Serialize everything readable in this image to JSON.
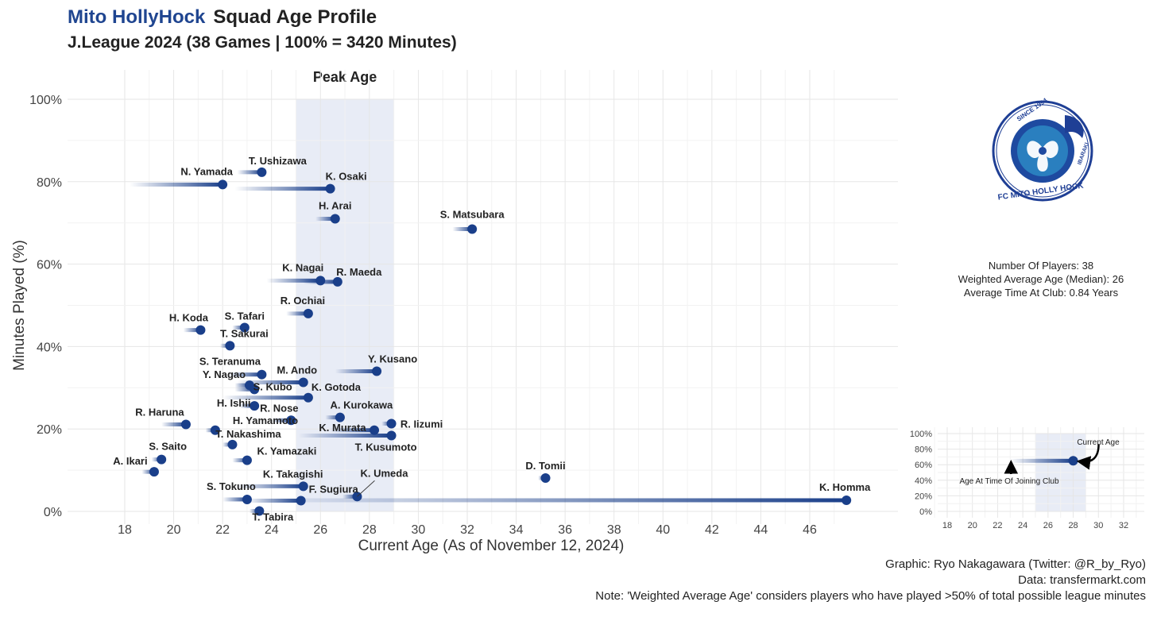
{
  "header": {
    "club": "Mito HollyHock",
    "title_rest": "Squad Age Profile",
    "subtitle": "J.League 2024 (38 Games | 100% = 3420 Minutes)"
  },
  "logo": {
    "since": "SINCE 1994",
    "name": "FC MITO HOLLY HOCK",
    "region": "IBARAKI"
  },
  "stats": {
    "players": "Number Of Players: 38",
    "weighted_age": "Weighted Average Age (Median): 26",
    "time_at_club": "Average Time At Club: 0.84 Years"
  },
  "footer": {
    "graphic": "Graphic: Ryo Nakagawara (Twitter: @R_by_Ryo)",
    "data": "Data: transfermarkt.com",
    "note": "Note: 'Weighted Average Age' considers players who have played >50% of total possible league minutes"
  },
  "colors": {
    "accent": "#1f4590",
    "point": "#1a3f8a",
    "peak_band": "#e8ecf6",
    "grid": "#e6e6e6",
    "label": "#222222"
  },
  "chart_data": {
    "type": "scatter",
    "title": "Peak Age",
    "xlabel": "Current Age (As of November 12, 2024)",
    "ylabel": "Minutes Played (%)",
    "xlim": [
      16,
      50
    ],
    "ylim": [
      0,
      100
    ],
    "xticks": [
      18,
      20,
      22,
      24,
      26,
      28,
      30,
      32,
      34,
      36,
      38,
      40,
      42,
      44,
      46
    ],
    "yticks": [
      0,
      20,
      40,
      60,
      80,
      100
    ],
    "peak_band": [
      25,
      29
    ],
    "points": [
      {
        "name": "T. Ushizawa",
        "age": 23.6,
        "joined": 22.6,
        "minutes": 82.3
      },
      {
        "name": "N. Yamada",
        "age": 22.0,
        "joined": 18.2,
        "minutes": 79.3
      },
      {
        "name": "K. Osaki",
        "age": 26.4,
        "joined": 22.5,
        "minutes": 78.3
      },
      {
        "name": "H. Arai",
        "age": 26.6,
        "joined": 25.8,
        "minutes": 71.0
      },
      {
        "name": "S. Matsubara",
        "age": 32.2,
        "joined": 31.4,
        "minutes": 68.5
      },
      {
        "name": "K. Nagai",
        "age": 26.0,
        "joined": 23.8,
        "minutes": 56.0
      },
      {
        "name": "R. Maeda",
        "age": 26.7,
        "joined": 25.3,
        "minutes": 55.7
      },
      {
        "name": "R. Ochiai",
        "age": 25.5,
        "joined": 24.6,
        "minutes": 48.0
      },
      {
        "name": "S. Tafari",
        "age": 22.9,
        "joined": 22.4,
        "minutes": 44.6
      },
      {
        "name": "H. Koda",
        "age": 21.1,
        "joined": 20.4,
        "minutes": 44.0
      },
      {
        "name": "T. Sakurai",
        "age": 22.3,
        "joined": 21.9,
        "minutes": 40.2
      },
      {
        "name": "S. Teranuma",
        "age": 23.6,
        "joined": 22.2,
        "minutes": 33.2
      },
      {
        "name": "Y. Kusano",
        "age": 28.3,
        "joined": 26.6,
        "minutes": 34.0
      },
      {
        "name": "M. Ando",
        "age": 25.3,
        "joined": 22.6,
        "minutes": 31.3
      },
      {
        "name": "Y. Nagao",
        "age": 23.1,
        "joined": 22.5,
        "minutes": 30.6
      },
      {
        "name": "S. Kubo",
        "age": 23.3,
        "joined": 22.5,
        "minutes": 29.6
      },
      {
        "name": "K. Gotoda",
        "age": 25.5,
        "joined": 22.0,
        "minutes": 27.6
      },
      {
        "name": "H. Ishii",
        "age": 23.3,
        "joined": 22.7,
        "minutes": 25.6
      },
      {
        "name": "R. Nose",
        "age": 24.8,
        "joined": 24.0,
        "minutes": 22.1
      },
      {
        "name": "A. Kurokawa",
        "age": 26.8,
        "joined": 26.2,
        "minutes": 22.8
      },
      {
        "name": "R. Iizumi",
        "age": 28.9,
        "joined": 28.5,
        "minutes": 21.3
      },
      {
        "name": "R. Haruna",
        "age": 20.5,
        "joined": 19.5,
        "minutes": 21.1
      },
      {
        "name": "H. Yamamoto",
        "age": 21.7,
        "joined": 21.3,
        "minutes": 19.7
      },
      {
        "name": "K. Murata",
        "age": 28.2,
        "joined": 26.4,
        "minutes": 19.7
      },
      {
        "name": "T. Kusumoto",
        "age": 28.9,
        "joined": 25.1,
        "minutes": 18.4
      },
      {
        "name": "T. Nakashima",
        "age": 22.4,
        "joined": 22.0,
        "minutes": 16.2
      },
      {
        "name": "S. Saito",
        "age": 19.5,
        "joined": 19.1,
        "minutes": 12.6
      },
      {
        "name": "K. Yamazaki",
        "age": 23.0,
        "joined": 22.4,
        "minutes": 12.4
      },
      {
        "name": "A. Ikari",
        "age": 19.2,
        "joined": 18.7,
        "minutes": 9.6
      },
      {
        "name": "D. Tomii",
        "age": 35.2,
        "joined": 34.9,
        "minutes": 8.1
      },
      {
        "name": "K. Takagishi",
        "age": 25.3,
        "joined": 22.5,
        "minutes": 6.1
      },
      {
        "name": "K. Umeda",
        "age": 27.5,
        "joined": 26.9,
        "minutes": 3.6
      },
      {
        "name": "S. Tokuno",
        "age": 23.0,
        "joined": 22.0,
        "minutes": 2.9
      },
      {
        "name": "F. Sugiura",
        "age": 25.2,
        "joined": 23.0,
        "minutes": 2.6
      },
      {
        "name": "K. Homma",
        "age": 47.5,
        "joined": 23.0,
        "minutes": 2.7
      },
      {
        "name": "T. Tabira",
        "age": 23.5,
        "joined": 23.1,
        "minutes": 0.1
      }
    ],
    "legend": {
      "xticks": [
        18,
        20,
        22,
        24,
        26,
        28,
        30,
        32
      ],
      "yticks": [
        0,
        20,
        40,
        60,
        80,
        100
      ],
      "xlim": [
        17,
        33.8
      ],
      "ylim": [
        0,
        100
      ],
      "peak_band": [
        25,
        29
      ],
      "example": {
        "age": 28,
        "joined": 23,
        "minutes": 65
      },
      "current_label": "Current Age",
      "joining_label": "Age At Time Of Joining Club"
    }
  }
}
